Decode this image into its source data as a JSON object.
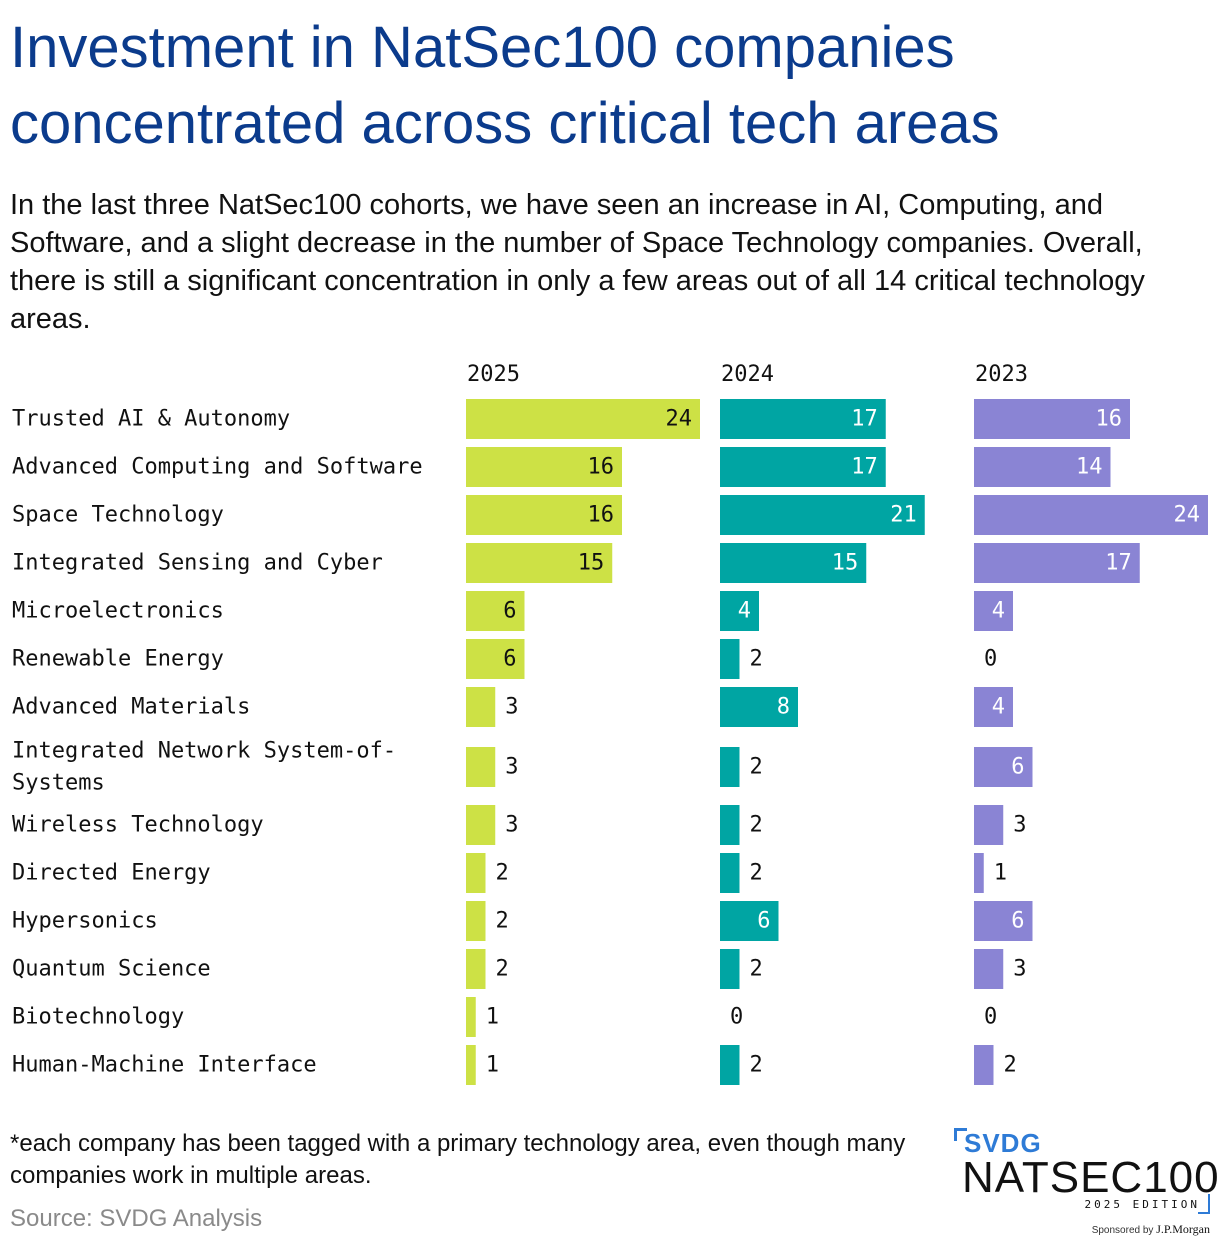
{
  "header": {
    "title": "Investment in NatSec100 companies concentrated across critical tech areas",
    "subtitle": "In the last three NatSec100 cohorts, we have seen an increase in AI, Computing, and Software, and a slight decrease in the number of Space Technology companies. Overall, there is still a significant concentration in only a few areas out of all 14 critical technology areas."
  },
  "footer": {
    "footnote": "*each company has been tagged with a primary technology area, even though many companies work in multiple areas.",
    "source": "Source: SVDG Analysis"
  },
  "logo": {
    "brand": "SVDG",
    "name": "NATSEC100",
    "edition": "2025 EDITION",
    "sponsored_by": "Sponsored by",
    "sponsor": "J.P.Morgan"
  },
  "colors": {
    "title": "#0b3b8c",
    "s2025": "#cde145",
    "s2024": "#00a5a3",
    "s2023": "#8a84d4"
  },
  "chart_data": {
    "type": "bar",
    "orientation": "horizontal",
    "categories": [
      "Trusted AI & Autonomy",
      "Advanced Computing and Software",
      "Space Technology",
      "Integrated Sensing and Cyber",
      "Microelectronics",
      "Renewable Energy",
      "Advanced Materials",
      "Integrated Network System-of-Systems",
      "Wireless Technology",
      "Directed Energy",
      "Hypersonics",
      "Quantum Science",
      "Biotechnology",
      "Human-Machine Interface"
    ],
    "series": [
      {
        "name": "2025",
        "color": "#cde145",
        "values": [
          24,
          16,
          16,
          15,
          6,
          6,
          3,
          3,
          3,
          2,
          2,
          2,
          1,
          1
        ]
      },
      {
        "name": "2024",
        "color": "#00a5a3",
        "values": [
          17,
          17,
          21,
          15,
          4,
          2,
          8,
          2,
          2,
          2,
          6,
          2,
          0,
          2
        ]
      },
      {
        "name": "2023",
        "color": "#8a84d4",
        "values": [
          16,
          14,
          24,
          17,
          4,
          0,
          4,
          6,
          3,
          1,
          6,
          3,
          0,
          2
        ]
      }
    ],
    "layout": "small-multiples",
    "grid": false,
    "data_labels": true
  }
}
